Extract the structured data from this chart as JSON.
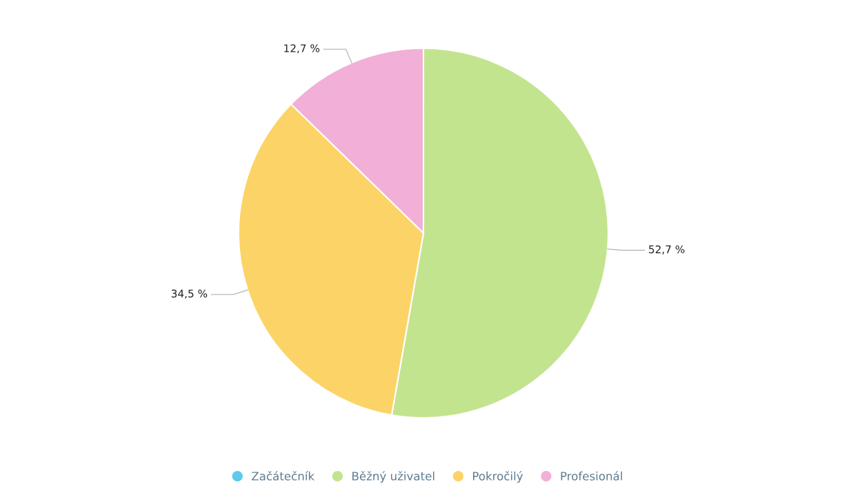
{
  "chart_data": {
    "type": "pie",
    "categories": [
      "Začátečník",
      "Běžný uživatel",
      "Pokročilý",
      "Profesionál"
    ],
    "values": [
      0,
      52.7,
      34.5,
      12.7
    ],
    "value_labels": [
      null,
      "52,7 %",
      "34,5 %",
      "12,7 %"
    ],
    "colors": [
      "#5bcbef",
      "#c3e48f",
      "#fcd366",
      "#f2afd7"
    ],
    "legend": "bottom"
  }
}
